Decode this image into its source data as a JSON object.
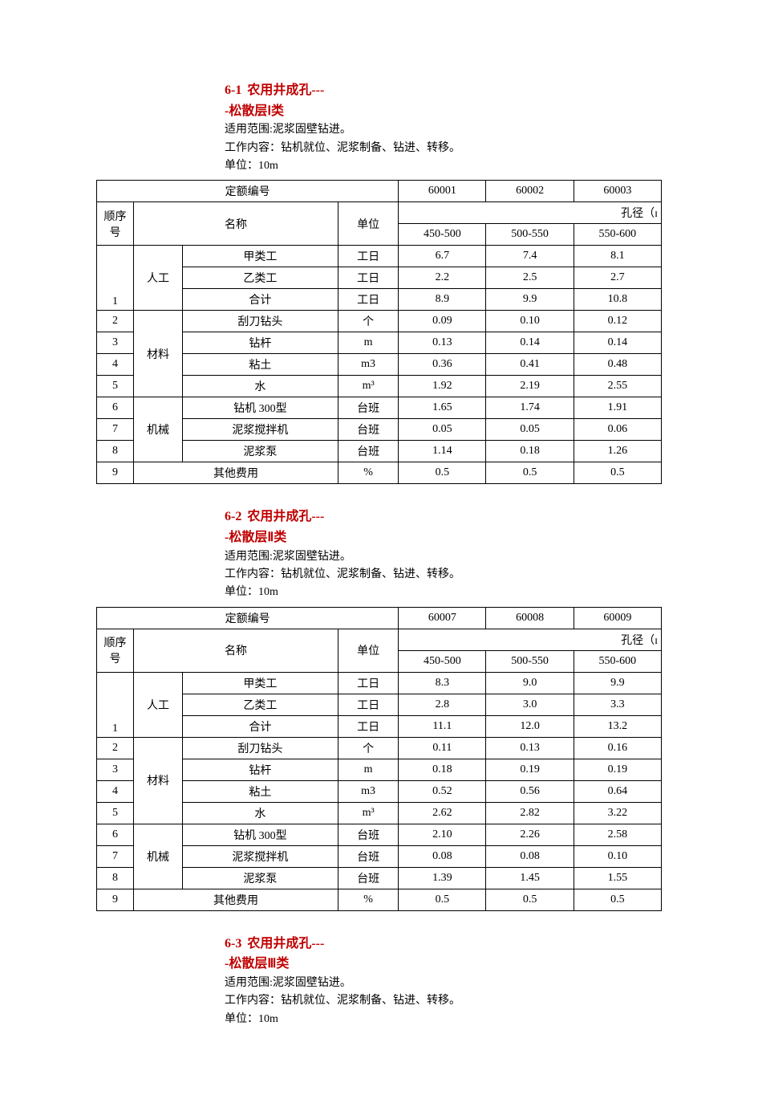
{
  "common": {
    "scope_label_prefix": "适用范围:",
    "scope_text": "泥浆固壁钻进。",
    "content_label_prefix": "工作内容：",
    "content_text": "钻机就位、泥浆制备、钻进、转移。",
    "unit_label_prefix": "单位：",
    "unit_text": "10m",
    "hdr_quota": "定额编号",
    "hdr_seq_line1": "顺序",
    "hdr_seq_line2": "号",
    "hdr_name": "名称",
    "hdr_unit": "单位",
    "hdr_diameter": "孔径（ɪ",
    "diam_cols": [
      "450-500",
      "500-550",
      "550-600"
    ],
    "cat_labor": "人工",
    "cat_material": "材料",
    "cat_machine": "机械",
    "cat_other": "其他费用",
    "row_labels": {
      "worker_a": "甲类工",
      "worker_b": "乙类工",
      "total": "合计",
      "scraper": "刮刀钻头",
      "rod": "钻杆",
      "clay": "粘土",
      "water": "水",
      "drill300": "钻机 300型",
      "mixer": "泥浆搅拌机",
      "pump": "泥浆泵"
    },
    "units": {
      "gongri": "工日",
      "ge": "个",
      "m": "m",
      "m3": "m3",
      "m3_sup": "m³",
      "taiban": "台班",
      "percent": "%"
    }
  },
  "sections": [
    {
      "num": "6-1",
      "title": "农用井成孔---",
      "sub": "-松散层Ⅰ类",
      "codes": [
        "60001",
        "60002",
        "60003"
      ],
      "data": {
        "worker_a": [
          "6.7",
          "7.4",
          "8.1"
        ],
        "worker_b": [
          "2.2",
          "2.5",
          "2.7"
        ],
        "total": [
          "8.9",
          "9.9",
          "10.8"
        ],
        "scraper": [
          "0.09",
          "0.10",
          "0.12"
        ],
        "rod": [
          "0.13",
          "0.14",
          "0.14"
        ],
        "clay": [
          "0.36",
          "0.41",
          "0.48"
        ],
        "water": [
          "1.92",
          "2.19",
          "2.55"
        ],
        "drill300": [
          "1.65",
          "1.74",
          "1.91"
        ],
        "mixer": [
          "0.05",
          "0.05",
          "0.06"
        ],
        "pump": [
          "1.14",
          "0.18",
          "1.26"
        ],
        "other": [
          "0.5",
          "0.5",
          "0.5"
        ]
      }
    },
    {
      "num": "6-2",
      "title": "农用井成孔---",
      "sub": "-松散层Ⅱ类",
      "codes": [
        "60007",
        "60008",
        "60009"
      ],
      "data": {
        "worker_a": [
          "8.3",
          "9.0",
          "9.9"
        ],
        "worker_b": [
          "2.8",
          "3.0",
          "3.3"
        ],
        "total": [
          "11.1",
          "12.0",
          "13.2"
        ],
        "scraper": [
          "0.11",
          "0.13",
          "0.16"
        ],
        "rod": [
          "0.18",
          "0.19",
          "0.19"
        ],
        "clay": [
          "0.52",
          "0.56",
          "0.64"
        ],
        "water": [
          "2.62",
          "2.82",
          "3.22"
        ],
        "drill300": [
          "2.10",
          "2.26",
          "2.58"
        ],
        "mixer": [
          "0.08",
          "0.08",
          "0.10"
        ],
        "pump": [
          "1.39",
          "1.45",
          "1.55"
        ],
        "other": [
          "0.5",
          "0.5",
          "0.5"
        ]
      }
    },
    {
      "num": "6-3",
      "title": "农用井成孔---",
      "sub": "-松散层Ⅲ类"
    }
  ]
}
